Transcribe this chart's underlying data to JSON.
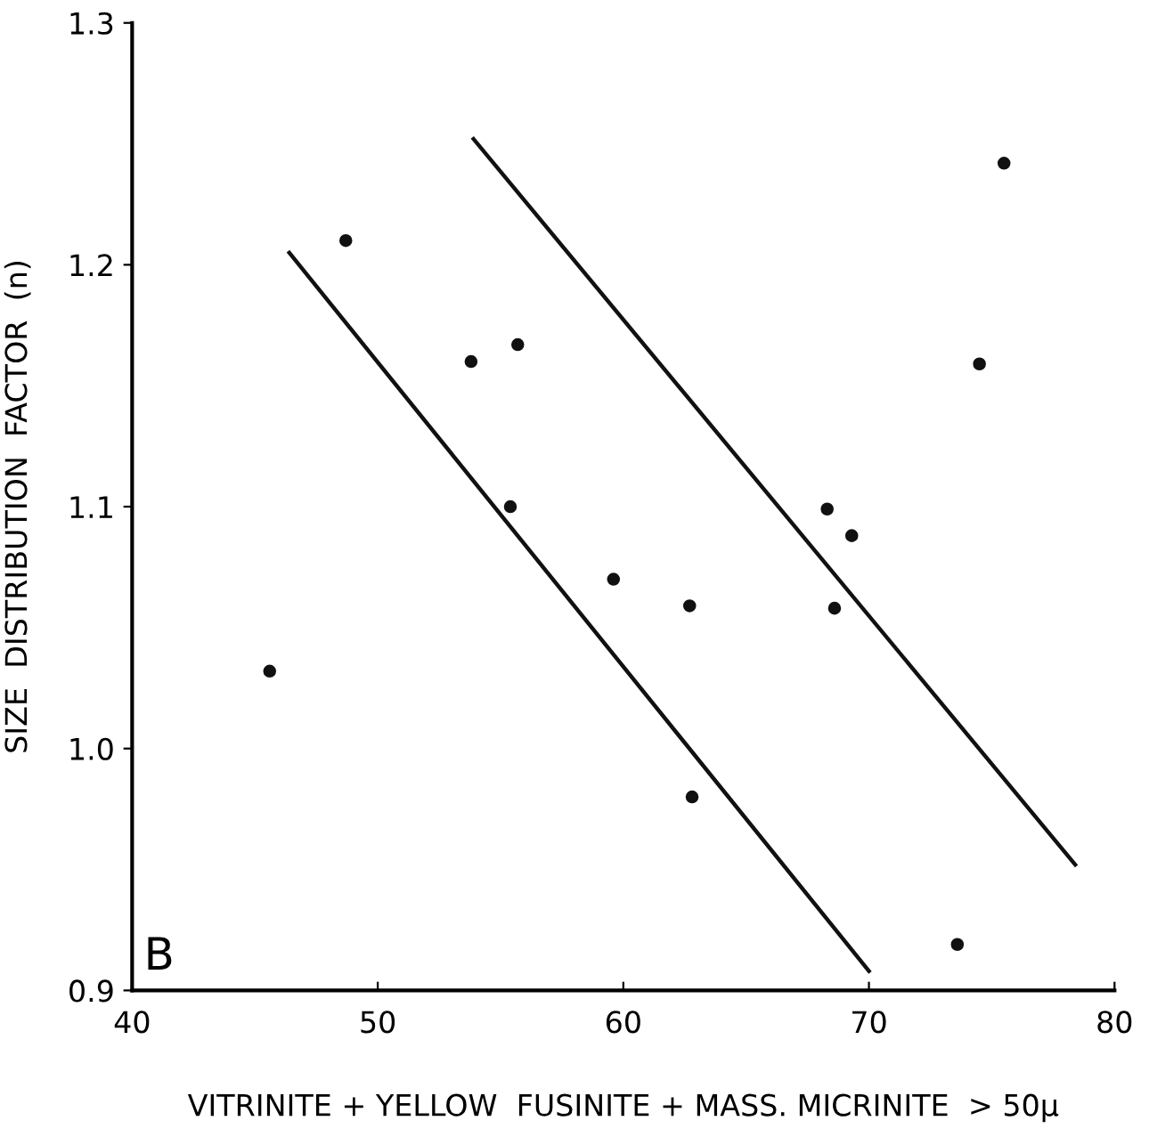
{
  "chart_data": {
    "type": "scatter",
    "xlabel": "VITRINITE + YELLOW  FUSINITE + MASS. MICRINITE  > 50μ",
    "ylabel": "SIZE  DISTRIBUTION  FACTOR  (n)",
    "annotations": [
      "B"
    ],
    "xlim": [
      40,
      80
    ],
    "xticks": [
      40,
      50,
      60,
      70,
      80
    ],
    "ylim": [
      0.9,
      1.3
    ],
    "yticks": [
      0.9,
      {
        "value": 1,
        "label": "1.0"
      },
      1.1,
      1.2,
      1.3
    ],
    "grid": false,
    "legend": false,
    "marker": "circle",
    "series": [
      {
        "color": "#111111",
        "x": [
          45.6,
          48.7,
          53.8,
          55.7,
          55.4,
          59.6,
          62.7,
          62.8,
          68.3,
          69.3,
          68.6,
          74.5,
          75.5,
          73.6
        ],
        "values": [
          1.032,
          1.21,
          1.16,
          1.167,
          1.1,
          1.07,
          1.059,
          0.98,
          1.099,
          1.088,
          1.058,
          1.159,
          1.242,
          0.919
        ]
      },
      {
        "type": "line",
        "color": "#111111",
        "marker": "none",
        "line_style": "solid",
        "x": [
          46.4,
          70.0
        ],
        "values": [
          1.205,
          0.908
        ]
      },
      {
        "type": "line",
        "color": "#111111",
        "marker": "none",
        "line_style": "solid",
        "x": [
          53.9,
          78.4
        ],
        "values": [
          1.252,
          0.952
        ]
      }
    ]
  }
}
